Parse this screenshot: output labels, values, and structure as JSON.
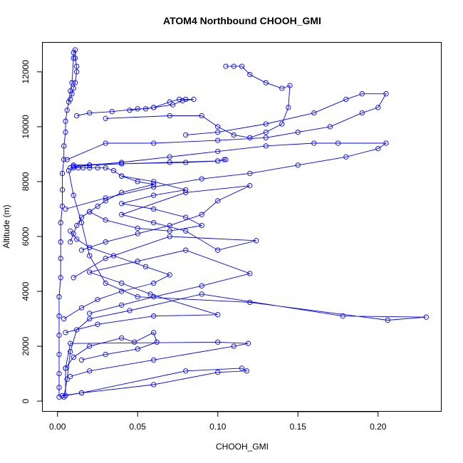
{
  "chart_data": {
    "type": "scatter",
    "title": "ATOM4 Northbound CHOOH_GMI",
    "xlabel": "CHOOH_GMI",
    "ylabel": "Altitude (m)",
    "xlim": [
      -0.0092,
      0.2392
    ],
    "ylim": [
      -360,
      13060
    ],
    "x_ticks": [
      0.0,
      0.05,
      0.1,
      0.15,
      0.2
    ],
    "x_tick_labels": [
      "0.00",
      "0.05",
      "0.10",
      "0.15",
      "0.20"
    ],
    "y_ticks": [
      0,
      2000,
      4000,
      6000,
      8000,
      10000,
      12000
    ],
    "y_tick_labels": [
      "0",
      "2000",
      "4000",
      "6000",
      "8000",
      "10000",
      "12000"
    ],
    "grid": false,
    "legend": "none",
    "series_color": "#0000ff",
    "marker": "open-circle",
    "connected_lines": true,
    "series": [
      {
        "points": [
          [
            0.004,
            150
          ],
          [
            0.006,
            800
          ],
          [
            0.008,
            1800
          ],
          [
            0.012,
            2600
          ],
          [
            0.02,
            3000
          ],
          [
            0.045,
            3300
          ],
          [
            0.09,
            3900
          ],
          [
            0.178,
            3100
          ],
          [
            0.23,
            3060
          ],
          [
            0.206,
            2950
          ],
          [
            0.12,
            3600
          ],
          [
            0.05,
            3800
          ],
          [
            0.03,
            4300
          ],
          [
            0.02,
            5300
          ],
          [
            0.015,
            6500
          ],
          [
            0.01,
            7500
          ],
          [
            0.007,
            8400
          ]
        ]
      },
      {
        "points": [
          [
            0.003,
            200
          ],
          [
            0.015,
            300
          ],
          [
            0.08,
            1100
          ],
          [
            0.115,
            1200
          ],
          [
            0.118,
            1100
          ],
          [
            0.1,
            1050
          ],
          [
            0.06,
            600
          ],
          [
            0.015,
            300
          ],
          [
            0.005,
            200
          ],
          [
            0.005,
            1200
          ],
          [
            0.008,
            2100
          ],
          [
            0.1,
            2150
          ],
          [
            0.119,
            2100
          ],
          [
            0.11,
            2000
          ],
          [
            0.06,
            1500
          ],
          [
            0.02,
            1100
          ],
          [
            0.008,
            900
          ]
        ]
      },
      {
        "points": [
          [
            0.005,
            2500
          ],
          [
            0.025,
            2800
          ],
          [
            0.06,
            3100
          ],
          [
            0.1,
            3150
          ],
          [
            0.058,
            3900
          ],
          [
            0.04,
            4300
          ],
          [
            0.02,
            4700
          ],
          [
            0.05,
            5100
          ],
          [
            0.08,
            5500
          ],
          [
            0.12,
            4650
          ],
          [
            0.09,
            4200
          ],
          [
            0.06,
            3800
          ],
          [
            0.04,
            3500
          ],
          [
            0.02,
            3200
          ]
        ]
      },
      {
        "points": [
          [
            0.01,
            4500
          ],
          [
            0.03,
            5200
          ],
          [
            0.07,
            6000
          ],
          [
            0.124,
            5850
          ],
          [
            0.1,
            5500
          ],
          [
            0.08,
            6200
          ],
          [
            0.06,
            6500
          ],
          [
            0.04,
            6800
          ],
          [
            0.08,
            7600
          ],
          [
            0.12,
            7850
          ],
          [
            0.1,
            7300
          ],
          [
            0.09,
            6800
          ],
          [
            0.07,
            6400
          ],
          [
            0.05,
            6100
          ],
          [
            0.03,
            5800
          ],
          [
            0.015,
            5500
          ]
        ]
      },
      {
        "points": [
          [
            0.005,
            7000
          ],
          [
            0.03,
            7400
          ],
          [
            0.06,
            7800
          ],
          [
            0.09,
            8100
          ],
          [
            0.12,
            8300
          ],
          [
            0.15,
            8600
          ],
          [
            0.18,
            8900
          ],
          [
            0.2,
            9200
          ],
          [
            0.205,
            9400
          ],
          [
            0.175,
            9400
          ],
          [
            0.16,
            9400
          ],
          [
            0.13,
            9300
          ],
          [
            0.1,
            9100
          ],
          [
            0.07,
            8900
          ],
          [
            0.04,
            8700
          ],
          [
            0.02,
            8600
          ],
          [
            0.008,
            8500
          ]
        ]
      },
      {
        "points": [
          [
            0.01,
            8600
          ],
          [
            0.04,
            8650
          ],
          [
            0.08,
            8700
          ],
          [
            0.1,
            8750
          ],
          [
            0.104,
            8800
          ],
          [
            0.105,
            8800
          ],
          [
            0.1,
            8750
          ],
          [
            0.07,
            8700
          ],
          [
            0.04,
            8650
          ],
          [
            0.02,
            8600
          ],
          [
            0.01,
            8550
          ]
        ]
      },
      {
        "points": [
          [
            0.006,
            8800
          ],
          [
            0.03,
            9400
          ],
          [
            0.06,
            9400
          ],
          [
            0.1,
            9500
          ],
          [
            0.13,
            9600
          ],
          [
            0.15,
            9800
          ],
          [
            0.17,
            10000
          ],
          [
            0.19,
            10500
          ],
          [
            0.2,
            10700
          ],
          [
            0.205,
            11200
          ],
          [
            0.19,
            11200
          ],
          [
            0.18,
            11000
          ],
          [
            0.16,
            10500
          ],
          [
            0.13,
            10100
          ],
          [
            0.1,
            9800
          ],
          [
            0.08,
            9700
          ]
        ]
      },
      {
        "points": [
          [
            0.03,
            10300
          ],
          [
            0.07,
            10400
          ],
          [
            0.09,
            10400
          ],
          [
            0.1,
            10000
          ],
          [
            0.11,
            9700
          ],
          [
            0.12,
            9600
          ],
          [
            0.13,
            9800
          ],
          [
            0.14,
            10100
          ],
          [
            0.144,
            10700
          ],
          [
            0.145,
            11500
          ],
          [
            0.14,
            11400
          ],
          [
            0.13,
            11600
          ],
          [
            0.12,
            11900
          ],
          [
            0.115,
            12200
          ],
          [
            0.11,
            12200
          ],
          [
            0.105,
            12200
          ]
        ]
      },
      {
        "points": [
          [
            0.012,
            10400
          ],
          [
            0.02,
            10500
          ],
          [
            0.034,
            10550
          ],
          [
            0.05,
            10650
          ],
          [
            0.055,
            10650
          ],
          [
            0.06,
            10700
          ],
          [
            0.07,
            10900
          ],
          [
            0.076,
            11000
          ],
          [
            0.08,
            11000
          ],
          [
            0.085,
            11000
          ],
          [
            0.078,
            10950
          ],
          [
            0.072,
            10800
          ],
          [
            0.06,
            10700
          ],
          [
            0.045,
            10600
          ]
        ]
      },
      {
        "points": [
          [
            0.008,
            11000
          ],
          [
            0.009,
            11200
          ],
          [
            0.01,
            11400
          ],
          [
            0.011,
            11600
          ],
          [
            0.012,
            12000
          ],
          [
            0.012,
            12200
          ],
          [
            0.011,
            12500
          ],
          [
            0.011,
            12800
          ],
          [
            0.01,
            12700
          ],
          [
            0.01,
            12500
          ],
          [
            0.009,
            11600
          ],
          [
            0.008,
            11300
          ],
          [
            0.007,
            10900
          ],
          [
            0.006,
            10600
          ],
          [
            0.005,
            10200
          ],
          [
            0.005,
            9800
          ],
          [
            0.004,
            9300
          ],
          [
            0.004,
            8800
          ],
          [
            0.003,
            8300
          ],
          [
            0.003,
            7700
          ],
          [
            0.003,
            7100
          ],
          [
            0.002,
            6500
          ],
          [
            0.002,
            5800
          ],
          [
            0.002,
            5200
          ],
          [
            0.002,
            4500
          ],
          [
            0.001,
            3800
          ],
          [
            0.001,
            3100
          ],
          [
            0.001,
            2400
          ],
          [
            0.001,
            1700
          ],
          [
            0.001,
            1000
          ],
          [
            0.001,
            500
          ],
          [
            0.001,
            150
          ]
        ]
      },
      {
        "points": [
          [
            0.01,
            8500
          ],
          [
            0.013,
            8500
          ],
          [
            0.016,
            8500
          ],
          [
            0.02,
            8500
          ],
          [
            0.025,
            8500
          ],
          [
            0.03,
            8500
          ],
          [
            0.035,
            8400
          ],
          [
            0.04,
            8200
          ],
          [
            0.05,
            8000
          ],
          [
            0.06,
            7900
          ],
          [
            0.04,
            7600
          ],
          [
            0.03,
            7300
          ],
          [
            0.025,
            7100
          ],
          [
            0.02,
            6900
          ],
          [
            0.015,
            6700
          ],
          [
            0.012,
            6400
          ],
          [
            0.01,
            6100
          ],
          [
            0.008,
            5800
          ]
        ]
      },
      {
        "points": [
          [
            0.02,
            6900
          ],
          [
            0.03,
            6600
          ],
          [
            0.05,
            6300
          ],
          [
            0.07,
            6200
          ],
          [
            0.09,
            6400
          ],
          [
            0.08,
            6700
          ],
          [
            0.06,
            7000
          ],
          [
            0.04,
            7200
          ],
          [
            0.06,
            7500
          ],
          [
            0.08,
            7700
          ],
          [
            0.06,
            8000
          ],
          [
            0.04,
            8200
          ]
        ]
      },
      {
        "points": [
          [
            0.004,
            3000
          ],
          [
            0.015,
            3400
          ],
          [
            0.025,
            3700
          ],
          [
            0.04,
            4000
          ],
          [
            0.06,
            4300
          ],
          [
            0.07,
            4600
          ],
          [
            0.055,
            4900
          ],
          [
            0.035,
            5300
          ],
          [
            0.02,
            5600
          ],
          [
            0.012,
            5900
          ],
          [
            0.008,
            6200
          ]
        ]
      },
      {
        "points": [
          [
            0.005,
            1200
          ],
          [
            0.01,
            1600
          ],
          [
            0.02,
            2000
          ],
          [
            0.04,
            2300
          ],
          [
            0.048,
            2150
          ],
          [
            0.06,
            2500
          ],
          [
            0.062,
            2150
          ],
          [
            0.05,
            1900
          ],
          [
            0.03,
            1700
          ],
          [
            0.015,
            1500
          ]
        ]
      }
    ]
  }
}
